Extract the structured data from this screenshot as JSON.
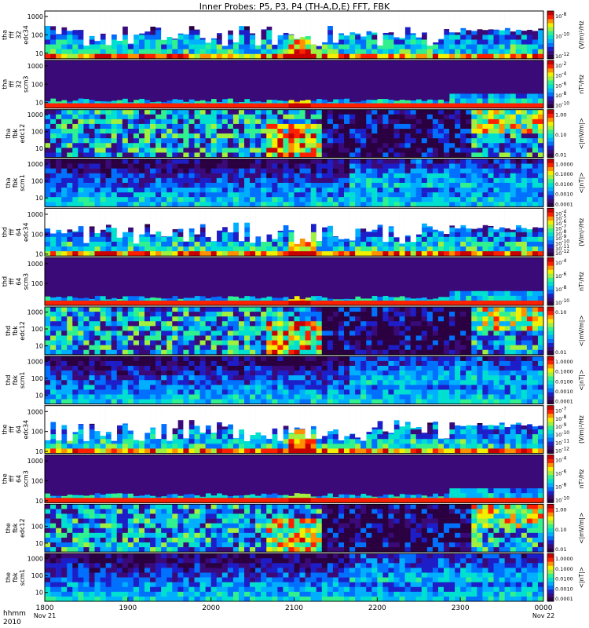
{
  "title": "Inner Probes: P5, P3, P4 (TH-A,D,E) FFT, FBK",
  "colors": {
    "spectrum": [
      "#2a0040",
      "#3a0a78",
      "#1e1ec8",
      "#0070ff",
      "#00b0ff",
      "#00e0d0",
      "#30f090",
      "#a0f040",
      "#f0f000",
      "#ff9000",
      "#ff2000",
      "#c80000"
    ],
    "frame": "#000000",
    "text": "#000000"
  },
  "x_axis": {
    "row1_label": "hhmm",
    "row2_label": "2010",
    "ticks": [
      {
        "t": 0,
        "label": "1800",
        "sub": "Nov 21"
      },
      {
        "t": 1,
        "label": "1900",
        "sub": ""
      },
      {
        "t": 2,
        "label": "2000",
        "sub": ""
      },
      {
        "t": 3,
        "label": "2100",
        "sub": ""
      },
      {
        "t": 4,
        "label": "2200",
        "sub": ""
      },
      {
        "t": 5,
        "label": "2300",
        "sub": ""
      },
      {
        "t": 6,
        "label": "0000",
        "sub": "Nov 22"
      }
    ]
  },
  "chart_data": [
    {
      "type": "heatmap",
      "probe": "tha",
      "ylabel": [
        "tha",
        "fff",
        "32",
        "edc34"
      ],
      "ylim": [
        5,
        2000
      ],
      "y_ticks": [
        "1000",
        "100",
        "10"
      ],
      "colorbar": {
        "ticks": [
          "10-8",
          "10-10",
          "10-12"
        ],
        "unit": "(V/m)²/Hz"
      },
      "style": "efield"
    },
    {
      "type": "heatmap",
      "probe": "tha",
      "ylabel": [
        "tha",
        "fff",
        "32",
        "scm3"
      ],
      "ylim": [
        5,
        2000
      ],
      "y_ticks": [
        "1000",
        "100",
        "10"
      ],
      "colorbar": {
        "ticks": [
          "10-2",
          "10-4",
          "10-6",
          "10-8",
          "10-10"
        ],
        "unit": "nT²/Hz"
      },
      "style": "bfield"
    },
    {
      "type": "heatmap",
      "probe": "tha",
      "ylabel": [
        "tha",
        "fbk",
        "edc12"
      ],
      "ylim": [
        3,
        2000
      ],
      "y_ticks": [
        "1000",
        "100",
        "10"
      ],
      "colorbar": {
        "ticks": [
          "1.00",
          "0.10",
          "0.01"
        ],
        "unit": "<|mV/m|>"
      },
      "style": "fbke"
    },
    {
      "type": "heatmap",
      "probe": "tha",
      "ylabel": [
        "tha",
        "fbk",
        "scm1"
      ],
      "ylim": [
        3,
        2000
      ],
      "y_ticks": [
        "1000",
        "100",
        "10"
      ],
      "colorbar": {
        "ticks": [
          "1.0000",
          "0.1000",
          "0.0100",
          "0.0010",
          "0.0001"
        ],
        "unit": "<|nT|>"
      },
      "style": "fbkb"
    },
    {
      "type": "heatmap",
      "probe": "thd",
      "ylabel": [
        "thd",
        "fff",
        "64",
        "edc34"
      ],
      "ylim": [
        8,
        2000
      ],
      "y_ticks": [
        "1000",
        "100",
        "10"
      ],
      "colorbar": {
        "ticks": [
          "10-4",
          "10-5",
          "10-6",
          "10-7",
          "10-8",
          "10-9",
          "10-10",
          "10-11",
          "10-12"
        ],
        "unit": "(V/m)²/Hz"
      },
      "style": "efield"
    },
    {
      "type": "heatmap",
      "probe": "thd",
      "ylabel": [
        "thd",
        "fff",
        "64",
        "scm3"
      ],
      "ylim": [
        8,
        2000
      ],
      "y_ticks": [
        "1000",
        "100"
      ],
      "colorbar": {
        "ticks": [
          "10-4",
          "10-6",
          "10-8",
          "10-10"
        ],
        "unit": "nT²/Hz"
      },
      "style": "bfield"
    },
    {
      "type": "heatmap",
      "probe": "thd",
      "ylabel": [
        "thd",
        "fbk",
        "edc12"
      ],
      "ylim": [
        3,
        2000
      ],
      "y_ticks": [
        "1000",
        "100",
        "10"
      ],
      "colorbar": {
        "ticks": [
          "0.10",
          "0.01"
        ],
        "unit": "<|mV/m|>"
      },
      "style": "fbke"
    },
    {
      "type": "heatmap",
      "probe": "thd",
      "ylabel": [
        "thd",
        "fbk",
        "scm1"
      ],
      "ylim": [
        3,
        2000
      ],
      "y_ticks": [
        "1000",
        "100",
        "10"
      ],
      "colorbar": {
        "ticks": [
          "1.0000",
          "0.1000",
          "0.0100",
          "0.0010",
          "0.0001"
        ],
        "unit": "<|nT|>"
      },
      "style": "fbkb"
    },
    {
      "type": "heatmap",
      "probe": "the",
      "ylabel": [
        "the",
        "fff",
        "64",
        "edc34"
      ],
      "ylim": [
        8,
        2000
      ],
      "y_ticks": [
        "1000",
        "100",
        "10"
      ],
      "colorbar": {
        "ticks": [
          "10-7",
          "10-8",
          "10-9",
          "10-10",
          "10-11",
          "10-12"
        ],
        "unit": "(V/m)²/Hz"
      },
      "style": "efield"
    },
    {
      "type": "heatmap",
      "probe": "the",
      "ylabel": [
        "the",
        "fff",
        "64",
        "scm3"
      ],
      "ylim": [
        8,
        2000
      ],
      "y_ticks": [
        "1000",
        "100",
        "10"
      ],
      "colorbar": {
        "ticks": [
          "10-4",
          "10-6",
          "10-8",
          "10-10"
        ],
        "unit": "nT²/Hz"
      },
      "style": "bfield"
    },
    {
      "type": "heatmap",
      "probe": "the",
      "ylabel": [
        "the",
        "fbk",
        "edc12"
      ],
      "ylim": [
        3,
        2000
      ],
      "y_ticks": [
        "100",
        "10"
      ],
      "colorbar": {
        "ticks": [
          "1.00",
          "0.10",
          "0.01"
        ],
        "unit": "<|mV/m|>"
      },
      "style": "fbke"
    },
    {
      "type": "heatmap",
      "probe": "the",
      "ylabel": [
        "the",
        "fbk",
        "scm1"
      ],
      "ylim": [
        3,
        2000
      ],
      "y_ticks": [
        "1000",
        "100",
        "10"
      ],
      "colorbar": {
        "ticks": [
          "1.0000",
          "0.1000",
          "0.0100",
          "0.0010",
          "0.0001"
        ],
        "unit": "<|nT|>"
      },
      "style": "fbkb"
    }
  ]
}
